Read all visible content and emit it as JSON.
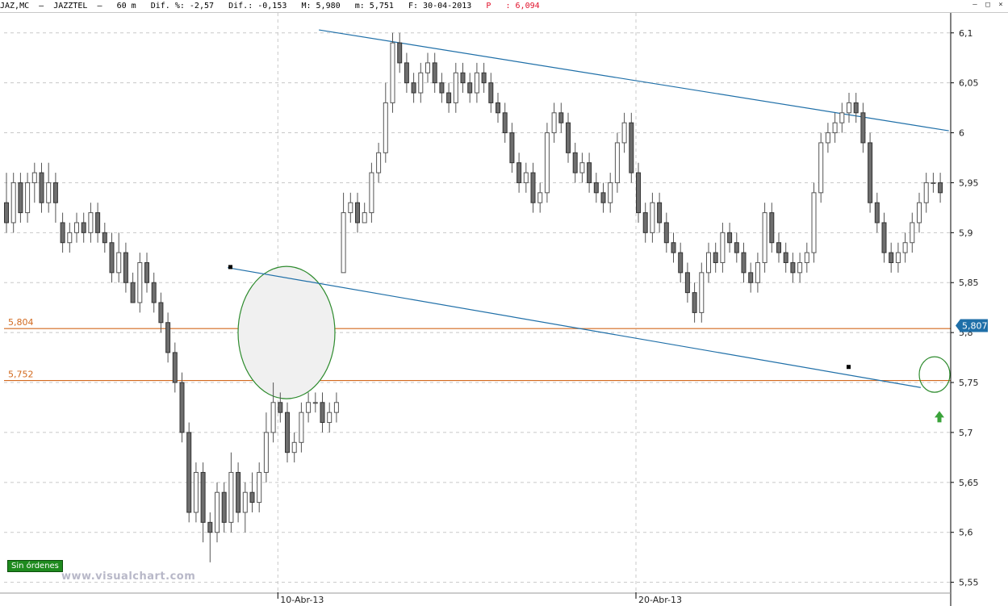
{
  "header": {
    "symbol": "JAZ,MC",
    "name": "JAZZTEL",
    "timeframe": "60 m",
    "dif_pct": "Dif. %: -2,57",
    "dif": "Dif.: -0,153",
    "max": "M: 5,980",
    "min": "m: 5,751",
    "date": "F: 30-04-2013",
    "p_label": "P",
    "p_value": ": 6,094"
  },
  "window_controls": [
    "–",
    "□",
    "×"
  ],
  "badge": "Sin órdenes",
  "watermark": "www.visualchart.com",
  "colors": {
    "hline": "#d2691e",
    "trend": "#1f6fa8",
    "ellipse": "#2e8b2e",
    "price_tag": "#1f6fa8",
    "arrow": "#3aa33a"
  },
  "chart_data": {
    "type": "candlestick",
    "y_ticks": [
      "6,1",
      "6,05",
      "6",
      "5,95",
      "5,9",
      "5,85",
      "5,8",
      "5,75",
      "5,7",
      "5,65",
      "5,6",
      "5,55"
    ],
    "ylim": [
      5.54,
      6.12
    ],
    "x_labels": [
      {
        "label": "10-Abr-13",
        "index": 39
      },
      {
        "label": "20-Abr-13",
        "index": 90
      }
    ],
    "horizontal_lines": [
      {
        "label": "5,804",
        "value": 5.804
      },
      {
        "label": "5,752",
        "value": 5.752
      }
    ],
    "last_price": "5,807",
    "trendlines": [
      {
        "from": [
          44.5,
          6.103
        ],
        "to": [
          131,
          6.002
        ]
      },
      {
        "from": [
          31.5,
          5.865
        ],
        "to": [
          127,
          5.745
        ]
      }
    ],
    "candles": [
      [
        5.93,
        5.91,
        5.96,
        5.9
      ],
      [
        5.91,
        5.95,
        5.96,
        5.9
      ],
      [
        5.95,
        5.92,
        5.96,
        5.91
      ],
      [
        5.92,
        5.95,
        5.96,
        5.91
      ],
      [
        5.95,
        5.96,
        5.97,
        5.93
      ],
      [
        5.96,
        5.93,
        5.97,
        5.92
      ],
      [
        5.93,
        5.95,
        5.97,
        5.92
      ],
      [
        5.95,
        5.93,
        5.96,
        5.91
      ],
      [
        5.91,
        5.89,
        5.92,
        5.88
      ],
      [
        5.89,
        5.9,
        5.91,
        5.88
      ],
      [
        5.9,
        5.91,
        5.92,
        5.89
      ],
      [
        5.91,
        5.9,
        5.92,
        5.89
      ],
      [
        5.9,
        5.92,
        5.93,
        5.89
      ],
      [
        5.92,
        5.9,
        5.93,
        5.89
      ],
      [
        5.9,
        5.89,
        5.91,
        5.88
      ],
      [
        5.89,
        5.86,
        5.9,
        5.85
      ],
      [
        5.86,
        5.88,
        5.9,
        5.85
      ],
      [
        5.88,
        5.85,
        5.89,
        5.84
      ],
      [
        5.85,
        5.83,
        5.86,
        5.83
      ],
      [
        5.83,
        5.87,
        5.88,
        5.82
      ],
      [
        5.87,
        5.85,
        5.88,
        5.84
      ],
      [
        5.85,
        5.83,
        5.86,
        5.82
      ],
      [
        5.83,
        5.81,
        5.84,
        5.8
      ],
      [
        5.81,
        5.78,
        5.82,
        5.77
      ],
      [
        5.78,
        5.75,
        5.79,
        5.74
      ],
      [
        5.75,
        5.7,
        5.76,
        5.69
      ],
      [
        5.7,
        5.62,
        5.71,
        5.61
      ],
      [
        5.62,
        5.66,
        5.67,
        5.61
      ],
      [
        5.66,
        5.61,
        5.67,
        5.59
      ],
      [
        5.61,
        5.6,
        5.62,
        5.57
      ],
      [
        5.6,
        5.64,
        5.65,
        5.59
      ],
      [
        5.64,
        5.61,
        5.65,
        5.6
      ],
      [
        5.61,
        5.66,
        5.68,
        5.6
      ],
      [
        5.66,
        5.62,
        5.67,
        5.61
      ],
      [
        5.62,
        5.64,
        5.65,
        5.6
      ],
      [
        5.64,
        5.63,
        5.66,
        5.62
      ],
      [
        5.63,
        5.66,
        5.67,
        5.62
      ],
      [
        5.66,
        5.7,
        5.72,
        5.65
      ],
      [
        5.7,
        5.73,
        5.75,
        5.69
      ],
      [
        5.73,
        5.72,
        5.74,
        5.71
      ],
      [
        5.72,
        5.68,
        5.73,
        5.67
      ],
      [
        5.68,
        5.69,
        5.7,
        5.67
      ],
      [
        5.69,
        5.72,
        5.73,
        5.68
      ],
      [
        5.72,
        5.73,
        5.74,
        5.71
      ],
      [
        5.73,
        5.73,
        5.74,
        5.72
      ],
      [
        5.73,
        5.71,
        5.74,
        5.7
      ],
      [
        5.71,
        5.72,
        5.73,
        5.7
      ],
      [
        5.72,
        5.73,
        5.74,
        5.71
      ],
      [
        5.86,
        5.92,
        5.94,
        5.86
      ],
      [
        5.92,
        5.93,
        5.94,
        5.91
      ],
      [
        5.93,
        5.91,
        5.94,
        5.9
      ],
      [
        5.91,
        5.92,
        5.93,
        5.91
      ],
      [
        5.92,
        5.96,
        5.97,
        5.91
      ],
      [
        5.96,
        5.98,
        5.99,
        5.95
      ],
      [
        5.98,
        6.03,
        6.05,
        5.97
      ],
      [
        6.03,
        6.09,
        6.1,
        6.02
      ]
    ]
  }
}
